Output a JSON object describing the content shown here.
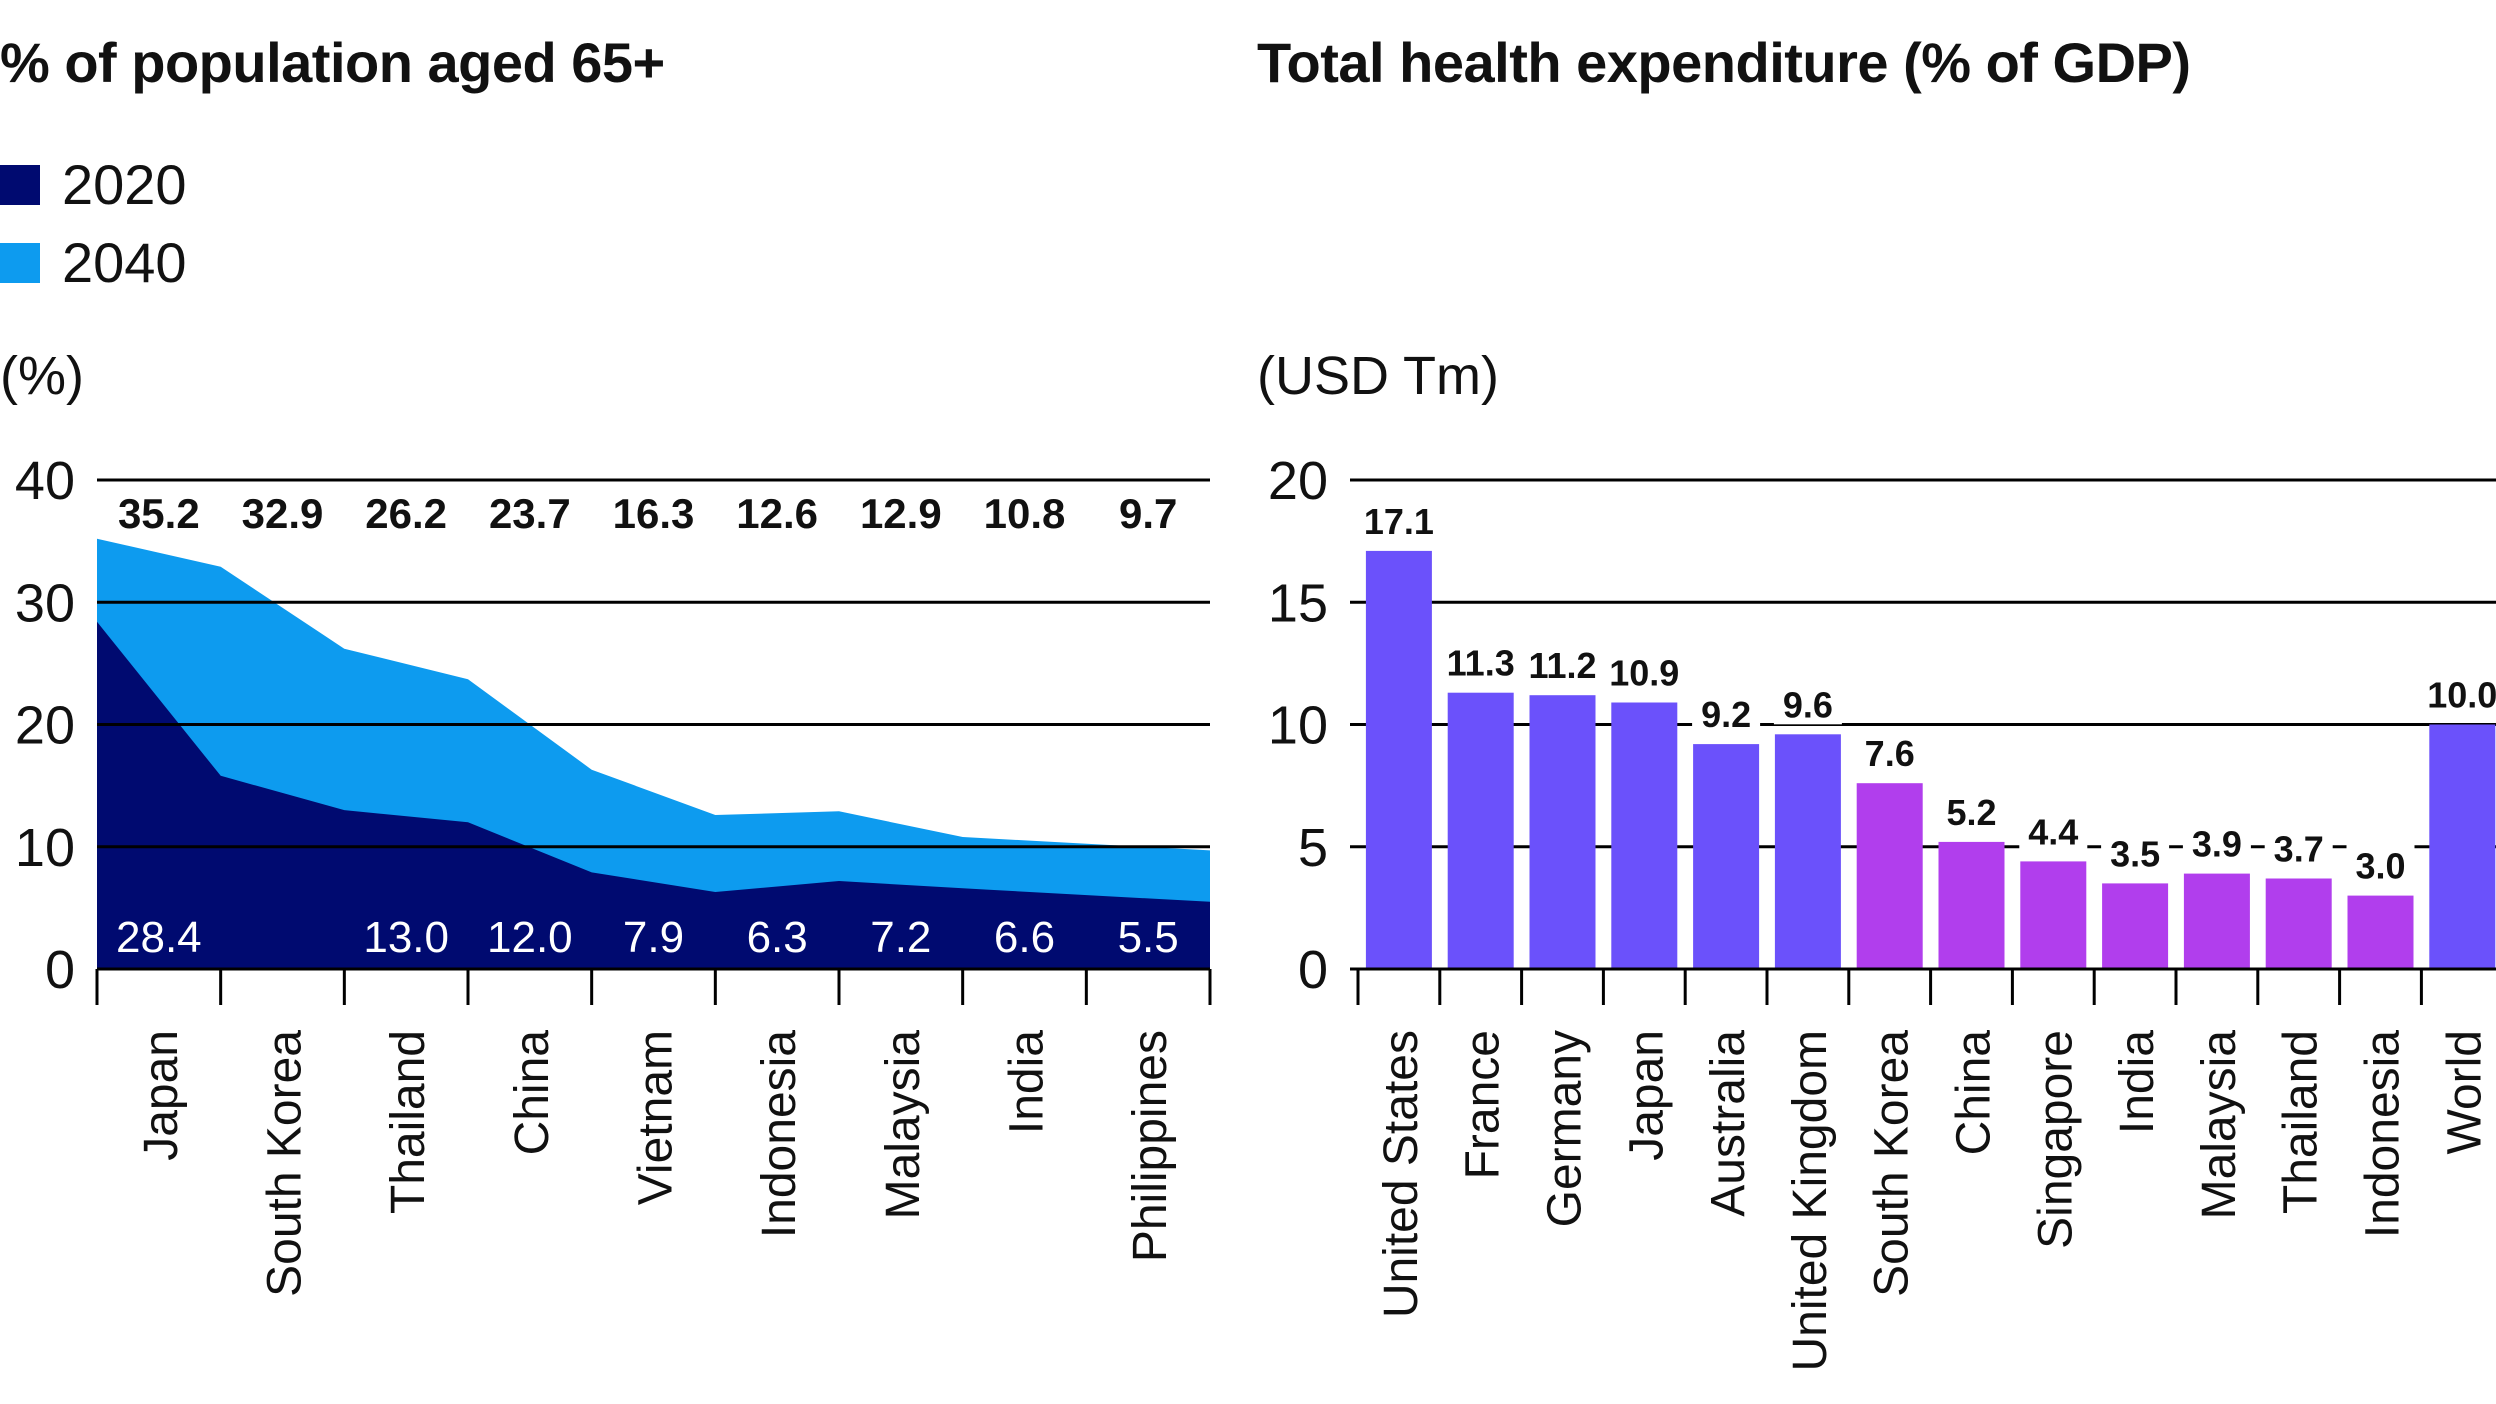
{
  "colors": {
    "c2020": "#000a70",
    "c2040": "#0d9bef",
    "bar_developed": "#6b51fb",
    "bar_emerging": "#b13eed",
    "gridline": "#000000",
    "label_light": "#ffffff",
    "label_dark": "#111111"
  },
  "chart_data": [
    {
      "type": "area",
      "title": "% of population aged 65+",
      "unit_label": "(%)",
      "ylim": [
        0,
        40
      ],
      "yticks": [
        "0",
        "10",
        "20",
        "30",
        "40"
      ],
      "grid": true,
      "legend_position": "top-left",
      "categories": [
        "Japan",
        "South Korea",
        "Thailand",
        "China",
        "Vietnam",
        "Indonesia",
        "Malaysia",
        "India",
        "Philippines"
      ],
      "series": [
        {
          "name": "2020",
          "color_key": "c2020",
          "values": [
            28.4,
            15.8,
            13.0,
            12.0,
            7.9,
            6.3,
            7.2,
            6.6,
            5.5
          ],
          "labels": [
            "28.4",
            "",
            "13.0",
            "12.0",
            "7.9",
            "6.3",
            "7.2",
            "6.6",
            "5.5"
          ]
        },
        {
          "name": "2040",
          "color_key": "c2040",
          "values": [
            35.2,
            32.9,
            26.2,
            23.7,
            16.3,
            12.6,
            12.9,
            10.8,
            9.7
          ],
          "labels": [
            "35.2",
            "32.9",
            "26.2",
            "23.7",
            "16.3",
            "12.6",
            "12.9",
            "10.8",
            "9.7"
          ]
        }
      ]
    },
    {
      "type": "bar",
      "title": "Total health expenditure (% of GDP)",
      "unit_label": "(USD Tm)",
      "ylim": [
        0,
        20
      ],
      "yticks": [
        "0",
        "5",
        "10",
        "15",
        "20"
      ],
      "grid": true,
      "categories": [
        "United States",
        "France",
        "Germany",
        "Japan",
        "Australia",
        "United Kingdom",
        "South Korea",
        "China",
        "Singapore",
        "India",
        "Malaysia",
        "Thailand",
        "Indonesia",
        "World"
      ],
      "values": [
        17.1,
        11.3,
        11.2,
        10.9,
        9.2,
        9.6,
        7.6,
        5.2,
        4.4,
        3.5,
        3.9,
        3.7,
        3.0,
        10.0
      ],
      "labels": [
        "17.1",
        "11.3",
        "11.2",
        "10.9",
        "9.2",
        "9.6",
        "7.6",
        "5.2",
        "4.4",
        "3.5",
        "3.9",
        "3.7",
        "3.0",
        "10.0"
      ],
      "groups": [
        "developed",
        "developed",
        "developed",
        "developed",
        "developed",
        "developed",
        "emerging",
        "emerging",
        "emerging",
        "emerging",
        "emerging",
        "emerging",
        "emerging",
        "developed"
      ]
    }
  ]
}
